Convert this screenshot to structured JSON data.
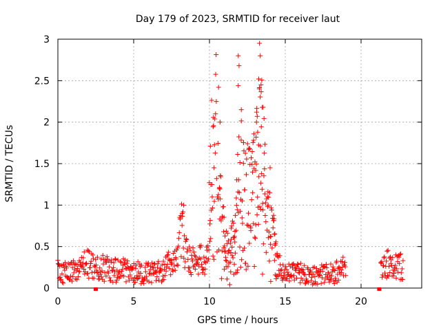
{
  "chart_data": {
    "type": "scatter",
    "title": "Day 179 of 2023, SRMTID for receiver laut",
    "xlabel": "GPS time / hours",
    "ylabel": "SRMTID / TECUs",
    "xlim": [
      0,
      24
    ],
    "ylim": [
      0,
      3
    ],
    "xticks": [
      0,
      5,
      10,
      15,
      20
    ],
    "xtick_labels": [
      "0",
      "5",
      "10",
      "15",
      "20"
    ],
    "yticks": [
      0,
      0.5,
      1,
      1.5,
      2,
      2.5,
      3
    ],
    "ytick_labels": [
      "0",
      "0.5",
      "1",
      "1.5",
      "2",
      "2.5",
      "3"
    ],
    "grid": true,
    "marker": "+",
    "color": "#ff0000",
    "gap_markers_x": [
      2.5,
      21.2
    ],
    "profile": {
      "description_hours": [
        0,
        23
      ],
      "x": [
        0,
        0.5,
        1,
        1.5,
        2,
        2.5,
        3,
        3.5,
        4,
        4.5,
        5,
        5.5,
        6,
        6.5,
        7,
        7.5,
        7.9,
        8.1,
        8.3,
        8.6,
        9,
        9.4,
        9.8,
        10.2,
        10.5,
        10.8,
        11.2,
        11.6,
        12,
        12.4,
        12.8,
        13.2,
        13.5,
        13.8,
        14.2,
        14.6,
        15,
        15.5,
        16,
        16.5,
        17,
        17.5,
        18,
        18.5,
        19,
        21.3,
        21.8,
        22.2,
        22.8
      ],
      "y": [
        0.2,
        0.18,
        0.22,
        0.25,
        0.3,
        0.22,
        0.24,
        0.22,
        0.2,
        0.22,
        0.2,
        0.18,
        0.18,
        0.18,
        0.22,
        0.3,
        0.45,
        0.8,
        0.55,
        0.35,
        0.3,
        0.35,
        0.3,
        1.5,
        1.6,
        0.6,
        0.35,
        0.5,
        1.2,
        1.0,
        0.9,
        1.3,
        1.4,
        0.9,
        0.5,
        0.25,
        0.15,
        0.2,
        0.18,
        0.18,
        0.16,
        0.16,
        0.17,
        0.2,
        0.25,
        0.2,
        0.3,
        0.28,
        0.25
      ]
    },
    "spikes": [
      {
        "x": 10.6,
        "y": 2.42
      },
      {
        "x": 10.4,
        "y": 2.1
      },
      {
        "x": 10.7,
        "y": 2.0
      },
      {
        "x": 11.9,
        "y": 2.8
      },
      {
        "x": 11.95,
        "y": 2.68
      },
      {
        "x": 11.9,
        "y": 2.44
      },
      {
        "x": 13.3,
        "y": 2.95
      },
      {
        "x": 13.25,
        "y": 2.52
      },
      {
        "x": 13.35,
        "y": 2.8
      },
      {
        "x": 13.4,
        "y": 2.45
      },
      {
        "x": 12.1,
        "y": 2.15
      },
      {
        "x": 13.1,
        "y": 2.0
      },
      {
        "x": 14.0,
        "y": 1.45
      },
      {
        "x": 8.3,
        "y": 1.0
      },
      {
        "x": 8.2,
        "y": 0.9
      }
    ]
  }
}
